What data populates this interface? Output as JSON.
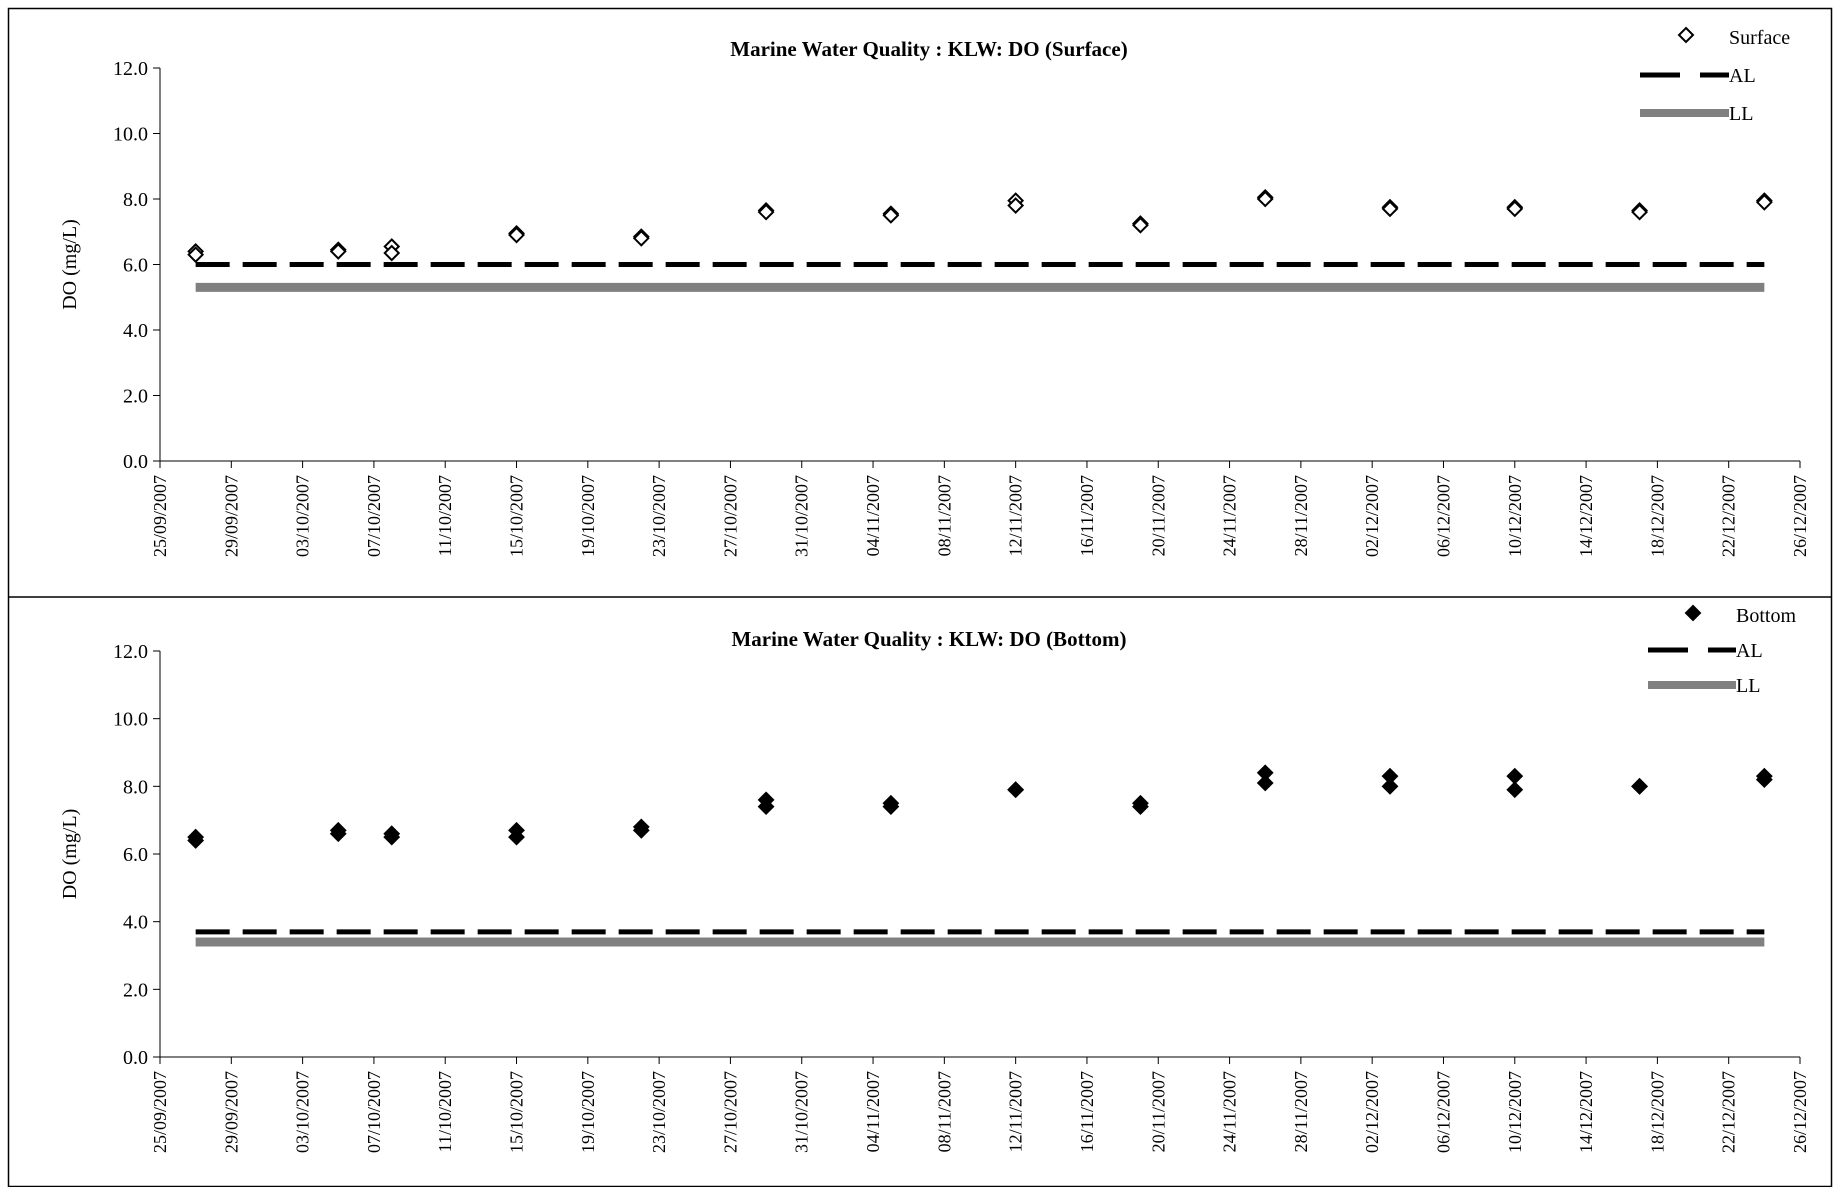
{
  "chart_data": [
    {
      "type": "scatter",
      "title": "Marine Water Quality : KLW: DO (Surface)",
      "ylabel": "DO (mg/L)",
      "xlabel": "",
      "ylim": [
        0,
        12
      ],
      "yticks": [
        "0.0",
        "2.0",
        "4.0",
        "6.0",
        "8.0",
        "10.0",
        "12.0"
      ],
      "xlim": [
        "25/09/2007",
        "26/12/2007"
      ],
      "xticks": [
        "25/09/2007",
        "29/09/2007",
        "03/10/2007",
        "07/10/2007",
        "11/10/2007",
        "15/10/2007",
        "19/10/2007",
        "23/10/2007",
        "27/10/2007",
        "31/10/2007",
        "04/11/2007",
        "08/11/2007",
        "12/11/2007",
        "16/11/2007",
        "20/11/2007",
        "24/11/2007",
        "28/11/2007",
        "02/12/2007",
        "06/12/2007",
        "10/12/2007",
        "14/12/2007",
        "18/12/2007",
        "22/12/2007",
        "26/12/2007"
      ],
      "legend": [
        "Surface",
        "AL",
        "LL"
      ],
      "legend_position": "top-right",
      "grid": false,
      "series": [
        {
          "name": "Surface",
          "marker": "diamond-open",
          "color": "#000000",
          "points": [
            {
              "x": "27/09/2007",
              "y": 6.4
            },
            {
              "x": "27/09/2007",
              "y": 6.3
            },
            {
              "x": "05/10/2007",
              "y": 6.45
            },
            {
              "x": "05/10/2007",
              "y": 6.4
            },
            {
              "x": "08/10/2007",
              "y": 6.55
            },
            {
              "x": "08/10/2007",
              "y": 6.35
            },
            {
              "x": "15/10/2007",
              "y": 6.95
            },
            {
              "x": "15/10/2007",
              "y": 6.9
            },
            {
              "x": "22/10/2007",
              "y": 6.85
            },
            {
              "x": "22/10/2007",
              "y": 6.8
            },
            {
              "x": "29/10/2007",
              "y": 7.65
            },
            {
              "x": "29/10/2007",
              "y": 7.6
            },
            {
              "x": "05/11/2007",
              "y": 7.55
            },
            {
              "x": "05/11/2007",
              "y": 7.5
            },
            {
              "x": "12/11/2007",
              "y": 7.95
            },
            {
              "x": "12/11/2007",
              "y": 7.8
            },
            {
              "x": "19/11/2007",
              "y": 7.25
            },
            {
              "x": "19/11/2007",
              "y": 7.2
            },
            {
              "x": "26/11/2007",
              "y": 8.05
            },
            {
              "x": "26/11/2007",
              "y": 8.0
            },
            {
              "x": "03/12/2007",
              "y": 7.75
            },
            {
              "x": "03/12/2007",
              "y": 7.7
            },
            {
              "x": "10/12/2007",
              "y": 7.75
            },
            {
              "x": "10/12/2007",
              "y": 7.7
            },
            {
              "x": "17/12/2007",
              "y": 7.65
            },
            {
              "x": "17/12/2007",
              "y": 7.6
            },
            {
              "x": "24/12/2007",
              "y": 7.95
            },
            {
              "x": "24/12/2007",
              "y": 7.9
            }
          ]
        },
        {
          "name": "AL",
          "style": "dashed",
          "color": "#000000",
          "x": [
            "27/09/2007",
            "24/12/2007"
          ],
          "y": [
            6.0,
            6.0
          ]
        },
        {
          "name": "LL",
          "style": "solid",
          "color": "#808080",
          "x": [
            "27/09/2007",
            "24/12/2007"
          ],
          "y": [
            5.3,
            5.3
          ]
        }
      ]
    },
    {
      "type": "scatter",
      "title": "Marine Water Quality : KLW: DO (Bottom)",
      "ylabel": "DO (mg/L)",
      "xlabel": "",
      "ylim": [
        0,
        12
      ],
      "yticks": [
        "0.0",
        "2.0",
        "4.0",
        "6.0",
        "8.0",
        "10.0",
        "12.0"
      ],
      "xlim": [
        "25/09/2007",
        "26/12/2007"
      ],
      "xticks": [
        "25/09/2007",
        "29/09/2007",
        "03/10/2007",
        "07/10/2007",
        "11/10/2007",
        "15/10/2007",
        "19/10/2007",
        "23/10/2007",
        "27/10/2007",
        "31/10/2007",
        "04/11/2007",
        "08/11/2007",
        "12/11/2007",
        "16/11/2007",
        "20/11/2007",
        "24/11/2007",
        "28/11/2007",
        "02/12/2007",
        "06/12/2007",
        "10/12/2007",
        "14/12/2007",
        "18/12/2007",
        "22/12/2007",
        "26/12/2007"
      ],
      "legend": [
        "Bottom",
        "AL",
        "LL"
      ],
      "legend_position": "top-right",
      "grid": false,
      "series": [
        {
          "name": "Bottom",
          "marker": "diamond-filled",
          "color": "#000000",
          "points": [
            {
              "x": "27/09/2007",
              "y": 6.5
            },
            {
              "x": "27/09/2007",
              "y": 6.4
            },
            {
              "x": "05/10/2007",
              "y": 6.7
            },
            {
              "x": "05/10/2007",
              "y": 6.6
            },
            {
              "x": "08/10/2007",
              "y": 6.6
            },
            {
              "x": "08/10/2007",
              "y": 6.5
            },
            {
              "x": "15/10/2007",
              "y": 6.7
            },
            {
              "x": "15/10/2007",
              "y": 6.5
            },
            {
              "x": "22/10/2007",
              "y": 6.8
            },
            {
              "x": "22/10/2007",
              "y": 6.7
            },
            {
              "x": "29/10/2007",
              "y": 7.6
            },
            {
              "x": "29/10/2007",
              "y": 7.4
            },
            {
              "x": "05/11/2007",
              "y": 7.5
            },
            {
              "x": "05/11/2007",
              "y": 7.4
            },
            {
              "x": "12/11/2007",
              "y": 7.9
            },
            {
              "x": "12/11/2007",
              "y": 7.9
            },
            {
              "x": "19/11/2007",
              "y": 7.5
            },
            {
              "x": "19/11/2007",
              "y": 7.4
            },
            {
              "x": "26/11/2007",
              "y": 8.4
            },
            {
              "x": "26/11/2007",
              "y": 8.1
            },
            {
              "x": "03/12/2007",
              "y": 8.3
            },
            {
              "x": "03/12/2007",
              "y": 8.0
            },
            {
              "x": "10/12/2007",
              "y": 8.3
            },
            {
              "x": "10/12/2007",
              "y": 7.9
            },
            {
              "x": "17/12/2007",
              "y": 8.0
            },
            {
              "x": "17/12/2007",
              "y": 8.0
            },
            {
              "x": "24/12/2007",
              "y": 8.3
            },
            {
              "x": "24/12/2007",
              "y": 8.2
            }
          ]
        },
        {
          "name": "AL",
          "style": "dashed",
          "color": "#000000",
          "x": [
            "27/09/2007",
            "24/12/2007"
          ],
          "y": [
            3.7,
            3.7
          ]
        },
        {
          "name": "LL",
          "style": "solid",
          "color": "#808080",
          "x": [
            "27/09/2007",
            "24/12/2007"
          ],
          "y": [
            3.4,
            3.4
          ]
        }
      ]
    }
  ]
}
